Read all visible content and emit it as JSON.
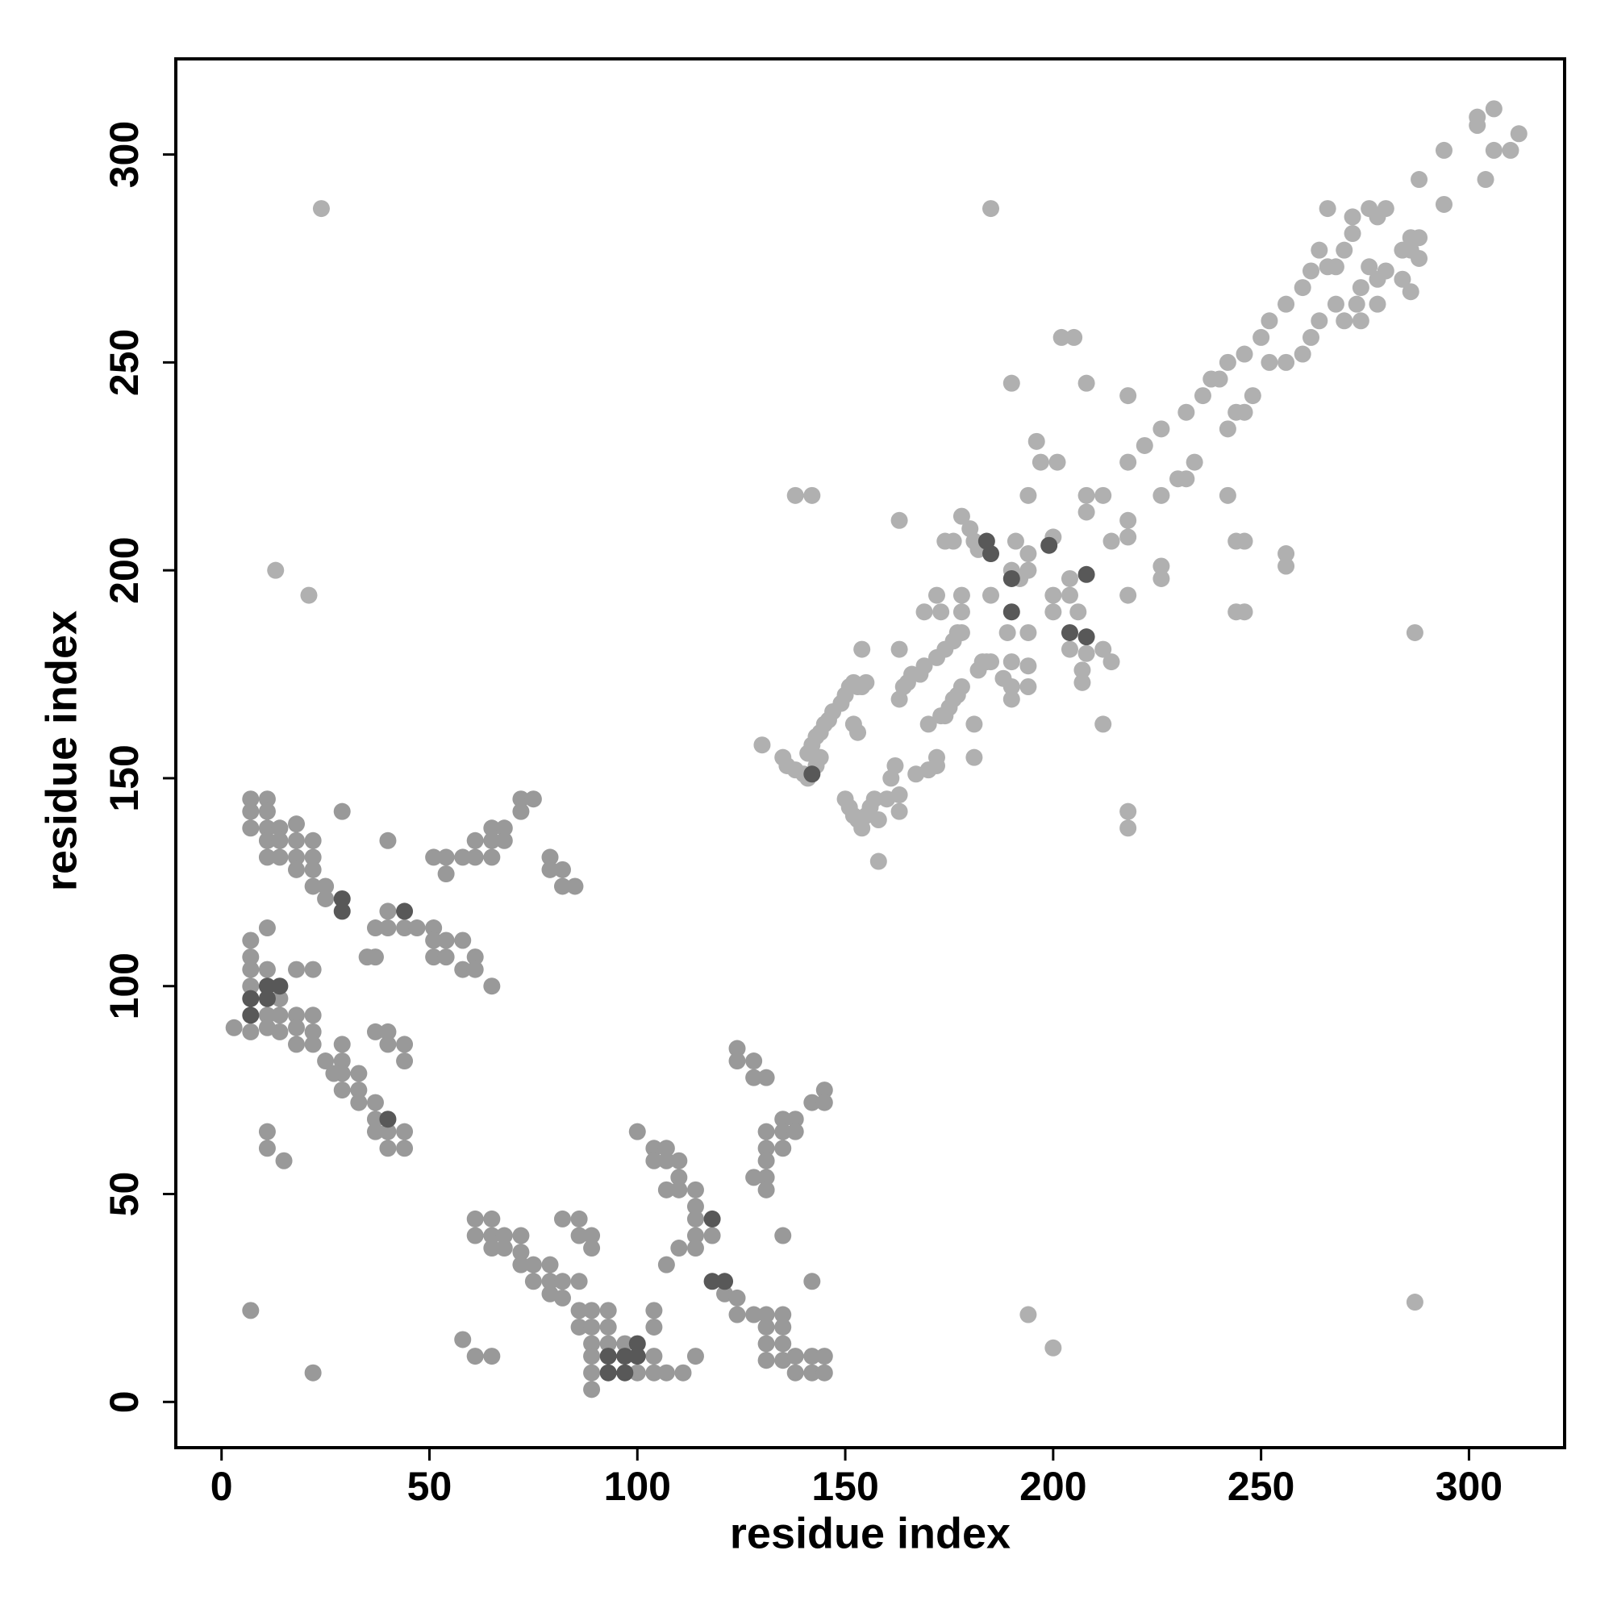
{
  "chart_data": {
    "type": "scatter",
    "xlabel": "residue index",
    "ylabel": "residue index",
    "xlim": [
      -11,
      323
    ],
    "ylim": [
      -11,
      323
    ],
    "xticks": [
      0,
      50,
      100,
      150,
      200,
      250,
      300
    ],
    "yticks": [
      0,
      50,
      100,
      150,
      200,
      250,
      300
    ],
    "series": [
      {
        "color": "#b0b0b0",
        "x": [
          130,
          135,
          136,
          138,
          140,
          141,
          143,
          144,
          141,
          142,
          143,
          144,
          145,
          146,
          147,
          149,
          150,
          151,
          152,
          153,
          154,
          155,
          152,
          153,
          154,
          138,
          142,
          150,
          151,
          152,
          153,
          154,
          155,
          156,
          157,
          158,
          158,
          160,
          161,
          162,
          163,
          163,
          163,
          163,
          164,
          163,
          165,
          166,
          167,
          168,
          169,
          170,
          170,
          172,
          172,
          173,
          174,
          175,
          176,
          177,
          178,
          172,
          174,
          176,
          177,
          178,
          169,
          172,
          173,
          174,
          176,
          178,
          178,
          178,
          180,
          181,
          182,
          182,
          181,
          181,
          183,
          184,
          185,
          185,
          188,
          189,
          190,
          190,
          190,
          190,
          191,
          190,
          192,
          194,
          194,
          194,
          194,
          194,
          194,
          196,
          197,
          200,
          200,
          201,
          202,
          204,
          204,
          204,
          205,
          206,
          207,
          207,
          208,
          208,
          208,
          208,
          212,
          212,
          212,
          214,
          214,
          218,
          218,
          218,
          218,
          218,
          218,
          218,
          222,
          226,
          226,
          226,
          226,
          230,
          232,
          232,
          234,
          236,
          238,
          240,
          242,
          242,
          242,
          244,
          244,
          246,
          244,
          246,
          246,
          246,
          248,
          250,
          252,
          252,
          256,
          256,
          256,
          256,
          260,
          260,
          262,
          262,
          264,
          264,
          266,
          266,
          268,
          268,
          270,
          270,
          272,
          272,
          273,
          274,
          274,
          276,
          276,
          278,
          278,
          278,
          280,
          280,
          284,
          284,
          286,
          286,
          286,
          288,
          288,
          288,
          294,
          294,
          302,
          302,
          304,
          306,
          306,
          310,
          312,
          185,
          287,
          287,
          194,
          200,
          13,
          21,
          24,
          200
        ],
        "y": [
          158,
          155,
          153,
          152,
          151,
          150,
          153,
          155,
          156,
          158,
          160,
          161,
          163,
          164,
          166,
          168,
          170,
          172,
          173,
          172,
          172,
          173,
          163,
          161,
          181,
          218,
          218,
          145,
          143,
          141,
          140,
          138,
          141,
          143,
          145,
          130,
          140,
          145,
          150,
          153,
          146,
          142,
          181,
          169,
          172,
          212,
          173,
          175,
          151,
          175,
          177,
          152,
          163,
          153,
          155,
          165,
          165,
          167,
          169,
          170,
          172,
          179,
          181,
          183,
          185,
          185,
          190,
          194,
          190,
          207,
          207,
          190,
          194,
          213,
          210,
          207,
          205,
          176,
          163,
          155,
          178,
          178,
          178,
          194,
          174,
          185,
          178,
          172,
          169,
          200,
          207,
          245,
          198,
          204,
          200,
          185,
          177,
          172,
          218,
          231,
          226,
          208,
          194,
          226,
          256,
          198,
          194,
          181,
          256,
          190,
          173,
          176,
          180,
          214,
          218,
          245,
          218,
          163,
          181,
          178,
          207,
          208,
          212,
          226,
          194,
          142,
          138,
          242,
          230,
          234,
          198,
          201,
          218,
          222,
          238,
          222,
          226,
          242,
          246,
          246,
          218,
          250,
          234,
          238,
          207,
          207,
          190,
          190,
          238,
          252,
          242,
          256,
          260,
          250,
          264,
          250,
          201,
          204,
          268,
          252,
          272,
          256,
          277,
          260,
          273,
          287,
          273,
          264,
          277,
          260,
          285,
          281,
          264,
          268,
          260,
          287,
          273,
          285,
          270,
          264,
          287,
          272,
          277,
          270,
          280,
          277,
          267,
          280,
          275,
          294,
          288,
          301,
          309,
          307,
          294,
          311,
          301,
          301,
          305,
          287,
          185,
          24,
          21,
          13,
          200,
          194,
          287,
          190
        ]
      },
      {
        "color": "#999999",
        "x": [
          7,
          7,
          7,
          7,
          7,
          7,
          7,
          7,
          11,
          11,
          11,
          11,
          11,
          11,
          11,
          11,
          11,
          11,
          11,
          14,
          14,
          14,
          14,
          14,
          14,
          15,
          18,
          18,
          18,
          18,
          18,
          18,
          18,
          18,
          22,
          22,
          22,
          22,
          22,
          22,
          22,
          22,
          22,
          25,
          25,
          25,
          27,
          29,
          29,
          29,
          29,
          29,
          33,
          33,
          33,
          35,
          37,
          37,
          37,
          37,
          37,
          37,
          40,
          40,
          40,
          40,
          40,
          40,
          40,
          44,
          44,
          44,
          44,
          44,
          47,
          51,
          51,
          51,
          51,
          54,
          54,
          54,
          54,
          58,
          58,
          58,
          58,
          61,
          61,
          61,
          61,
          61,
          61,
          61,
          65,
          65,
          65,
          65,
          65,
          65,
          65,
          65,
          68,
          68,
          68,
          68,
          72,
          72,
          72,
          72,
          72,
          75,
          75,
          75,
          79,
          79,
          79,
          79,
          79,
          82,
          82,
          82,
          82,
          82,
          85,
          86,
          86,
          86,
          86,
          86,
          89,
          89,
          89,
          89,
          89,
          89,
          89,
          89,
          93,
          93,
          93,
          97,
          100,
          100,
          104,
          104,
          104,
          104,
          104,
          104,
          107,
          107,
          107,
          107,
          107,
          110,
          110,
          110,
          110,
          111,
          114,
          114,
          114,
          114,
          114,
          114,
          118,
          121,
          124,
          124,
          124,
          124,
          128,
          128,
          128,
          128,
          131,
          131,
          131,
          131,
          131,
          131,
          131,
          131,
          131,
          131,
          135,
          135,
          135,
          135,
          135,
          135,
          135,
          135,
          138,
          138,
          138,
          138,
          142,
          142,
          142,
          142,
          145,
          145,
          145,
          145,
          3,
          7
        ],
        "y": [
          145,
          142,
          138,
          111,
          107,
          104,
          100,
          89,
          145,
          142,
          138,
          135,
          131,
          114,
          104,
          93,
          90,
          65,
          61,
          138,
          135,
          131,
          97,
          93,
          89,
          58,
          139,
          135,
          131,
          128,
          104,
          93,
          90,
          86,
          135,
          131,
          128,
          124,
          104,
          93,
          89,
          86,
          7,
          124,
          121,
          82,
          79,
          142,
          86,
          82,
          79,
          75,
          79,
          75,
          72,
          107,
          114,
          107,
          89,
          72,
          68,
          65,
          135,
          118,
          114,
          89,
          86,
          65,
          61,
          114,
          86,
          82,
          65,
          61,
          114,
          131,
          114,
          111,
          107,
          131,
          127,
          111,
          107,
          131,
          111,
          104,
          15,
          135,
          131,
          107,
          104,
          11,
          44,
          40,
          138,
          135,
          131,
          100,
          11,
          44,
          40,
          37,
          138,
          135,
          40,
          37,
          145,
          142,
          40,
          36,
          33,
          145,
          33,
          29,
          131,
          128,
          33,
          29,
          26,
          128,
          124,
          44,
          29,
          25,
          124,
          44,
          40,
          29,
          22,
          18,
          40,
          37,
          22,
          18,
          14,
          11,
          7,
          3,
          22,
          18,
          14,
          14,
          65,
          7,
          61,
          58,
          22,
          18,
          11,
          7,
          61,
          58,
          51,
          33,
          7,
          58,
          54,
          51,
          37,
          7,
          51,
          47,
          44,
          40,
          37,
          11,
          40,
          26,
          85,
          82,
          25,
          21,
          82,
          78,
          54,
          21,
          78,
          65,
          61,
          58,
          54,
          51,
          21,
          18,
          14,
          10,
          68,
          65,
          61,
          40,
          21,
          18,
          14,
          10,
          68,
          65,
          11,
          7,
          72,
          29,
          11,
          7,
          75,
          72,
          11,
          7,
          90,
          22
        ]
      },
      {
        "color": "#585858",
        "x": [
          7,
          7,
          11,
          11,
          14,
          29,
          29,
          44,
          40,
          118,
          118,
          121,
          93,
          93,
          97,
          97,
          100,
          100,
          142,
          184,
          185,
          199,
          190,
          204,
          208,
          208,
          190
        ],
        "y": [
          97,
          93,
          100,
          97,
          100,
          121,
          118,
          118,
          68,
          44,
          29,
          29,
          11,
          7,
          11,
          7,
          14,
          11,
          151,
          207,
          204,
          206,
          198,
          185,
          184,
          199,
          190
        ]
      }
    ]
  }
}
